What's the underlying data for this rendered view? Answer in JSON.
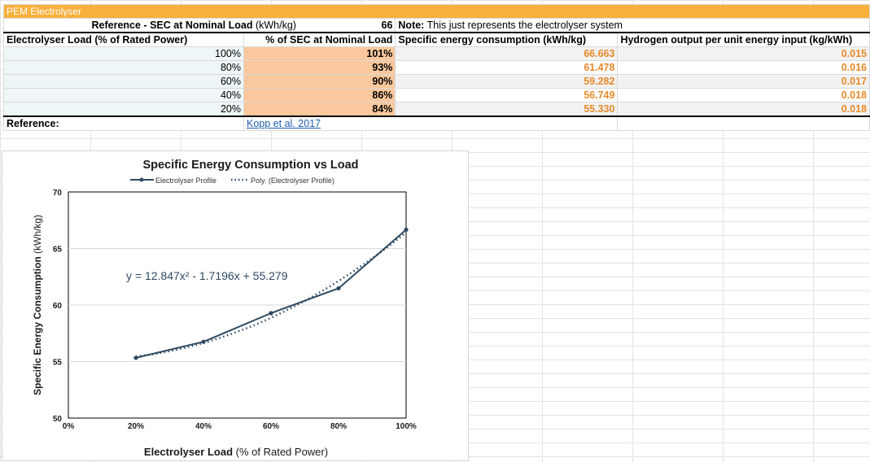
{
  "sheet": {
    "title": "PEM Electrolyser",
    "ref_label_bold": "Reference - SEC at Nominal Load",
    "ref_label_unit": "(kWh/kg)",
    "ref_value": "66",
    "note_bold": "Note:",
    "note_text": "This just represents the electrolyser system",
    "headers": [
      "Electrolyser Load (% of Rated Power)",
      "% of SEC at Nominal Load",
      "Specific energy consumption (kWh/kg)",
      "Hydrogen output per unit energy input (kg/kWh)"
    ],
    "rows": [
      {
        "load": "100%",
        "pct": "101%",
        "sec": "66.663",
        "h2": "0.015"
      },
      {
        "load": "80%",
        "pct": "93%",
        "sec": "61.478",
        "h2": "0.016"
      },
      {
        "load": "60%",
        "pct": "90%",
        "sec": "59.282",
        "h2": "0.017"
      },
      {
        "load": "40%",
        "pct": "86%",
        "sec": "56.749",
        "h2": "0.018"
      },
      {
        "load": "20%",
        "pct": "84%",
        "sec": "55.330",
        "h2": "0.018"
      }
    ],
    "reference_label": "Reference:",
    "reference_link": "Kopp et al. 2017"
  },
  "colors": {
    "title_bg": "#f9b03c",
    "pct_bg": "#fac89c",
    "value_text": "#e8892a",
    "series": "#2e4a62"
  },
  "chart_data": {
    "type": "line",
    "title": "Specific Energy Consumption vs Load",
    "xlabel_bold": "Electrolyser Load",
    "xlabel_rest": "(% of Rated Power)",
    "ylabel_bold": "Specific Energy Consumption",
    "ylabel_rest": "(kWh/kg)",
    "x": [
      0.2,
      0.4,
      0.6,
      0.8,
      1.0
    ],
    "x_ticks": [
      "0%",
      "20%",
      "40%",
      "60%",
      "80%",
      "100%"
    ],
    "y_ticks": [
      "50",
      "55",
      "60",
      "65",
      "70"
    ],
    "xlim": [
      0,
      1.0
    ],
    "ylim": [
      50,
      70
    ],
    "grid": true,
    "legend_position": "top",
    "series": [
      {
        "name": "Electrolyser Profile",
        "style": "solid",
        "values": [
          55.33,
          56.749,
          59.282,
          61.478,
          66.663
        ]
      }
    ],
    "trendline": {
      "name": "Poly. (Electrolyser Profile)",
      "style": "dotted",
      "coefficients": [
        12.847,
        -1.7196,
        55.279
      ],
      "equation": "y = 12.847x² - 1.7196x + 55.279"
    }
  }
}
